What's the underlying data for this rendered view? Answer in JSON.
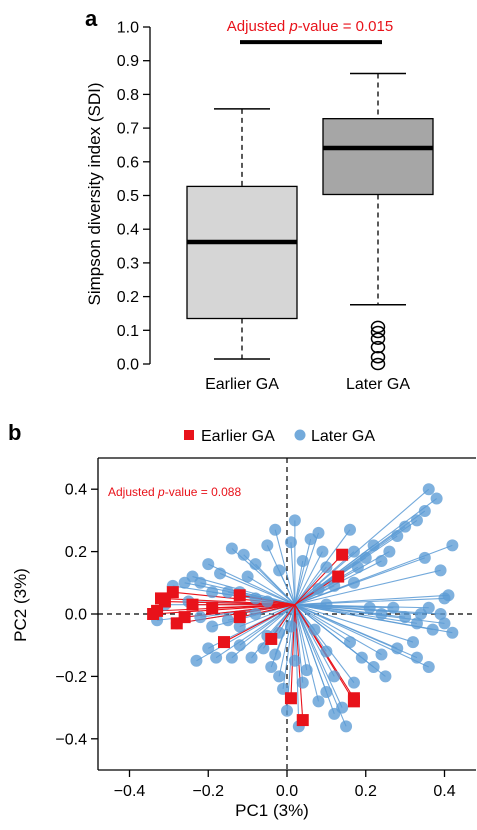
{
  "chart_data": [
    {
      "panel": "a",
      "type": "box",
      "ylabel": "Simpson diversity index (SDI)",
      "ylim": [
        0.0,
        1.0
      ],
      "yticks": [
        "0.0",
        "0.1",
        "0.2",
        "0.3",
        "0.4",
        "0.5",
        "0.6",
        "0.7",
        "0.8",
        "0.9",
        "1.0"
      ],
      "categories": [
        "Earlier GA",
        "Later GA"
      ],
      "boxes": [
        {
          "category": "Earlier GA",
          "whisker_low": 0.015,
          "q1": 0.135,
          "median": 0.362,
          "q3": 0.527,
          "whisker_high": 0.757,
          "outliers": [],
          "fill": "#d6d6d6"
        },
        {
          "category": "Later GA",
          "whisker_low": 0.176,
          "q1": 0.503,
          "median": 0.641,
          "q3": 0.728,
          "whisker_high": 0.862,
          "outliers": [
            0.0,
            0.02,
            0.05,
            0.075,
            0.095,
            0.11
          ],
          "fill": "#a6a6a6"
        }
      ],
      "annotation": {
        "prefix": "Adjusted ",
        "italic": "p",
        "suffix": "-value = 0.015",
        "y": 0.955
      }
    },
    {
      "panel": "b",
      "type": "scatter",
      "xlabel": "PC1 (3%)",
      "ylabel": "PC2 (3%)",
      "xlim": [
        -0.48,
        0.48
      ],
      "ylim": [
        -0.5,
        0.5
      ],
      "xticks": [
        {
          "v": -0.4,
          "label": "−0.4"
        },
        {
          "v": -0.2,
          "label": "−0.2"
        },
        {
          "v": 0.0,
          "label": "0.0"
        },
        {
          "v": 0.2,
          "label": "0.2"
        },
        {
          "v": 0.4,
          "label": "0.4"
        }
      ],
      "yticks": [
        {
          "v": -0.4,
          "label": "−0.4"
        },
        {
          "v": -0.2,
          "label": "−0.2"
        },
        {
          "v": 0.0,
          "label": "0.0"
        },
        {
          "v": 0.2,
          "label": "0.2"
        },
        {
          "v": 0.4,
          "label": "0.4"
        }
      ],
      "centroid": [
        0.02,
        0.03
      ],
      "legend": {
        "position": "top",
        "entries": [
          {
            "label": "Earlier GA",
            "marker": "square",
            "color": "#e8121a"
          },
          {
            "label": "Later GA",
            "marker": "circle",
            "color": "#5b9bd5"
          }
        ]
      },
      "annotation": {
        "prefix": "Adjusted ",
        "italic": "p",
        "suffix": "-value = 0.088"
      },
      "series": [
        {
          "name": "Later GA",
          "color": "#5b9bd5",
          "marker": "circle",
          "points": [
            [
              0.36,
              0.4
            ],
            [
              0.38,
              0.37
            ],
            [
              0.42,
              0.22
            ],
            [
              0.35,
              0.33
            ],
            [
              0.33,
              0.3
            ],
            [
              0.3,
              0.28
            ],
            [
              0.28,
              0.25
            ],
            [
              0.26,
              0.2
            ],
            [
              0.22,
              0.22
            ],
            [
              0.24,
              0.17
            ],
            [
              0.2,
              0.18
            ],
            [
              0.16,
              0.27
            ],
            [
              0.17,
              0.2
            ],
            [
              0.18,
              0.15
            ],
            [
              0.17,
              0.1
            ],
            [
              0.35,
              0.18
            ],
            [
              0.39,
              0.14
            ],
            [
              0.41,
              0.06
            ],
            [
              0.4,
              0.05
            ],
            [
              0.36,
              0.02
            ],
            [
              0.34,
              0.0
            ],
            [
              0.39,
              0.0
            ],
            [
              0.42,
              -0.06
            ],
            [
              0.4,
              -0.03
            ],
            [
              0.37,
              -0.05
            ],
            [
              0.33,
              -0.03
            ],
            [
              0.3,
              -0.01
            ],
            [
              0.27,
              0.02
            ],
            [
              0.24,
              0.0
            ],
            [
              0.21,
              0.02
            ],
            [
              0.32,
              -0.09
            ],
            [
              0.28,
              -0.11
            ],
            [
              0.33,
              -0.14
            ],
            [
              0.24,
              -0.13
            ],
            [
              0.36,
              -0.17
            ],
            [
              0.22,
              -0.17
            ],
            [
              0.25,
              -0.2
            ],
            [
              0.17,
              -0.22
            ],
            [
              0.1,
              -0.25
            ],
            [
              0.12,
              -0.2
            ],
            [
              0.08,
              -0.28
            ],
            [
              0.12,
              -0.32
            ],
            [
              0.15,
              -0.36
            ],
            [
              0.14,
              -0.3
            ],
            [
              0.19,
              -0.14
            ],
            [
              0.16,
              -0.09
            ],
            [
              0.1,
              -0.12
            ],
            [
              0.07,
              -0.05
            ],
            [
              0.1,
              0.03
            ],
            [
              0.08,
              0.08
            ],
            [
              0.12,
              0.09
            ],
            [
              0.1,
              0.15
            ],
            [
              0.09,
              0.2
            ],
            [
              0.08,
              0.26
            ],
            [
              0.02,
              0.3
            ],
            [
              0.06,
              0.24
            ],
            [
              0.04,
              0.17
            ],
            [
              0.01,
              0.23
            ],
            [
              -0.02,
              0.14
            ],
            [
              -0.03,
              0.27
            ],
            [
              -0.05,
              0.22
            ],
            [
              -0.08,
              0.16
            ],
            [
              -0.11,
              0.19
            ],
            [
              -0.14,
              0.21
            ],
            [
              -0.1,
              0.12
            ],
            [
              -0.17,
              0.13
            ],
            [
              -0.2,
              0.16
            ],
            [
              -0.24,
              0.12
            ],
            [
              -0.22,
              0.1
            ],
            [
              -0.26,
              0.1
            ],
            [
              -0.29,
              0.09
            ],
            [
              -0.19,
              0.07
            ],
            [
              -0.15,
              0.07
            ],
            [
              -0.12,
              0.07
            ],
            [
              -0.08,
              0.05
            ],
            [
              -0.05,
              0.04
            ],
            [
              -0.25,
              0.04
            ],
            [
              -0.31,
              0.03
            ],
            [
              -0.33,
              -0.02
            ],
            [
              -0.28,
              -0.03
            ],
            [
              -0.22,
              -0.01
            ],
            [
              -0.19,
              -0.04
            ],
            [
              -0.15,
              -0.02
            ],
            [
              -0.12,
              -0.04
            ],
            [
              -0.08,
              0.0
            ],
            [
              -0.2,
              -0.11
            ],
            [
              -0.18,
              -0.14
            ],
            [
              -0.23,
              -0.15
            ],
            [
              -0.14,
              -0.14
            ],
            [
              -0.12,
              -0.1
            ],
            [
              -0.09,
              -0.14
            ],
            [
              -0.06,
              -0.11
            ],
            [
              -0.03,
              -0.13
            ],
            [
              -0.05,
              -0.07
            ],
            [
              -0.02,
              -0.06
            ],
            [
              0.01,
              -0.04
            ],
            [
              -0.04,
              -0.17
            ],
            [
              -0.02,
              -0.2
            ],
            [
              0.02,
              -0.15
            ],
            [
              0.04,
              -0.22
            ],
            [
              0.05,
              -0.18
            ],
            [
              -0.01,
              -0.24
            ],
            [
              0.0,
              -0.31
            ],
            [
              0.03,
              -0.36
            ]
          ]
        },
        {
          "name": "Earlier GA",
          "color": "#e8121a",
          "marker": "square",
          "points": [
            [
              0.14,
              0.19
            ],
            [
              0.13,
              0.12
            ],
            [
              0.17,
              -0.27
            ],
            [
              0.17,
              -0.28
            ],
            [
              0.04,
              -0.34
            ],
            [
              0.01,
              -0.27
            ],
            [
              -0.04,
              -0.08
            ],
            [
              -0.16,
              -0.09
            ],
            [
              -0.12,
              -0.01
            ],
            [
              -0.12,
              0.06
            ],
            [
              -0.24,
              0.03
            ],
            [
              -0.26,
              -0.01
            ],
            [
              -0.29,
              0.07
            ],
            [
              -0.31,
              0.04
            ],
            [
              -0.32,
              0.05
            ],
            [
              -0.33,
              0.01
            ],
            [
              -0.34,
              0.0
            ],
            [
              -0.28,
              -0.03
            ],
            [
              -0.19,
              0.02
            ]
          ]
        }
      ]
    }
  ]
}
